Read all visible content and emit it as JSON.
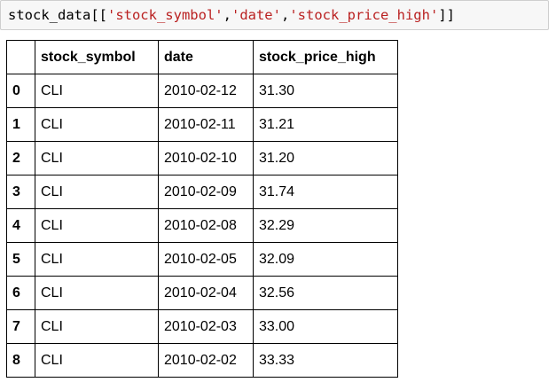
{
  "code_cell": {
    "prefix": "stock_data[[",
    "arg1": "'stock_symbol'",
    "sep1": ",",
    "arg2": "'date'",
    "sep2": ",",
    "arg3": "'stock_price_high'",
    "suffix": "]]"
  },
  "table": {
    "columns": [
      "",
      "stock_symbol",
      "date",
      "stock_price_high"
    ],
    "rows": [
      {
        "index": "0",
        "stock_symbol": "CLI",
        "date": "2010-02-12",
        "stock_price_high": "31.30"
      },
      {
        "index": "1",
        "stock_symbol": "CLI",
        "date": "2010-02-11",
        "stock_price_high": "31.21"
      },
      {
        "index": "2",
        "stock_symbol": "CLI",
        "date": "2010-02-10",
        "stock_price_high": "31.20"
      },
      {
        "index": "3",
        "stock_symbol": "CLI",
        "date": "2010-02-09",
        "stock_price_high": "31.74"
      },
      {
        "index": "4",
        "stock_symbol": "CLI",
        "date": "2010-02-08",
        "stock_price_high": "32.29"
      },
      {
        "index": "5",
        "stock_symbol": "CLI",
        "date": "2010-02-05",
        "stock_price_high": "32.09"
      },
      {
        "index": "6",
        "stock_symbol": "CLI",
        "date": "2010-02-04",
        "stock_price_high": "32.56"
      },
      {
        "index": "7",
        "stock_symbol": "CLI",
        "date": "2010-02-03",
        "stock_price_high": "33.00"
      },
      {
        "index": "8",
        "stock_symbol": "CLI",
        "date": "2010-02-02",
        "stock_price_high": "33.33"
      }
    ]
  },
  "colors": {
    "string_literal": "#ba2121",
    "code_background": "#f7f7f7",
    "code_border": "#cfcfcf",
    "table_border": "#000000"
  }
}
